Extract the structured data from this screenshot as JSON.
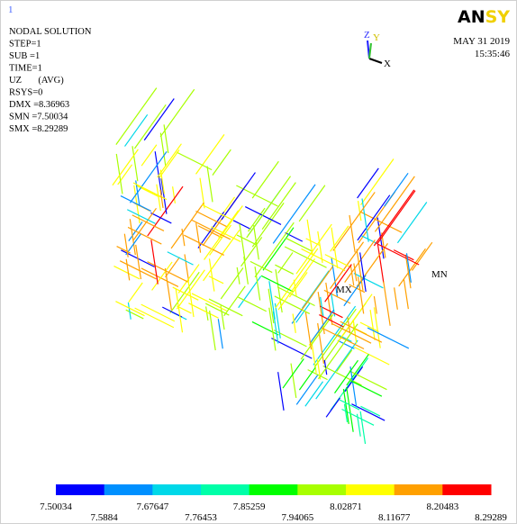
{
  "window_number": "1",
  "info": [
    "NODAL SOLUTION",
    "STEP=1",
    "SUB =1",
    "TIME=1",
    "UZ       (AVG)",
    "RSYS=0",
    "DMX =8.36963",
    "SMN =7.50034",
    "SMX =8.29289"
  ],
  "logo": {
    "main": "AN",
    "accent": "SY"
  },
  "date": "MAY 31 2019",
  "time": "15:35:46",
  "triad": {
    "z": "Z",
    "y": "Y",
    "x": "X"
  },
  "markers": {
    "max": "MX",
    "min": "MN"
  },
  "legend": {
    "colors": [
      "#0000ff",
      "#0090ff",
      "#00d8e8",
      "#00ffa8",
      "#00ff00",
      "#a8ff00",
      "#ffff00",
      "#ffa000",
      "#ff0000"
    ],
    "labels": [
      "7.50034",
      "7.5884",
      "7.67647",
      "7.76453",
      "7.85259",
      "7.94065",
      "8.02871",
      "8.11677",
      "8.20483",
      "8.29289"
    ]
  }
}
